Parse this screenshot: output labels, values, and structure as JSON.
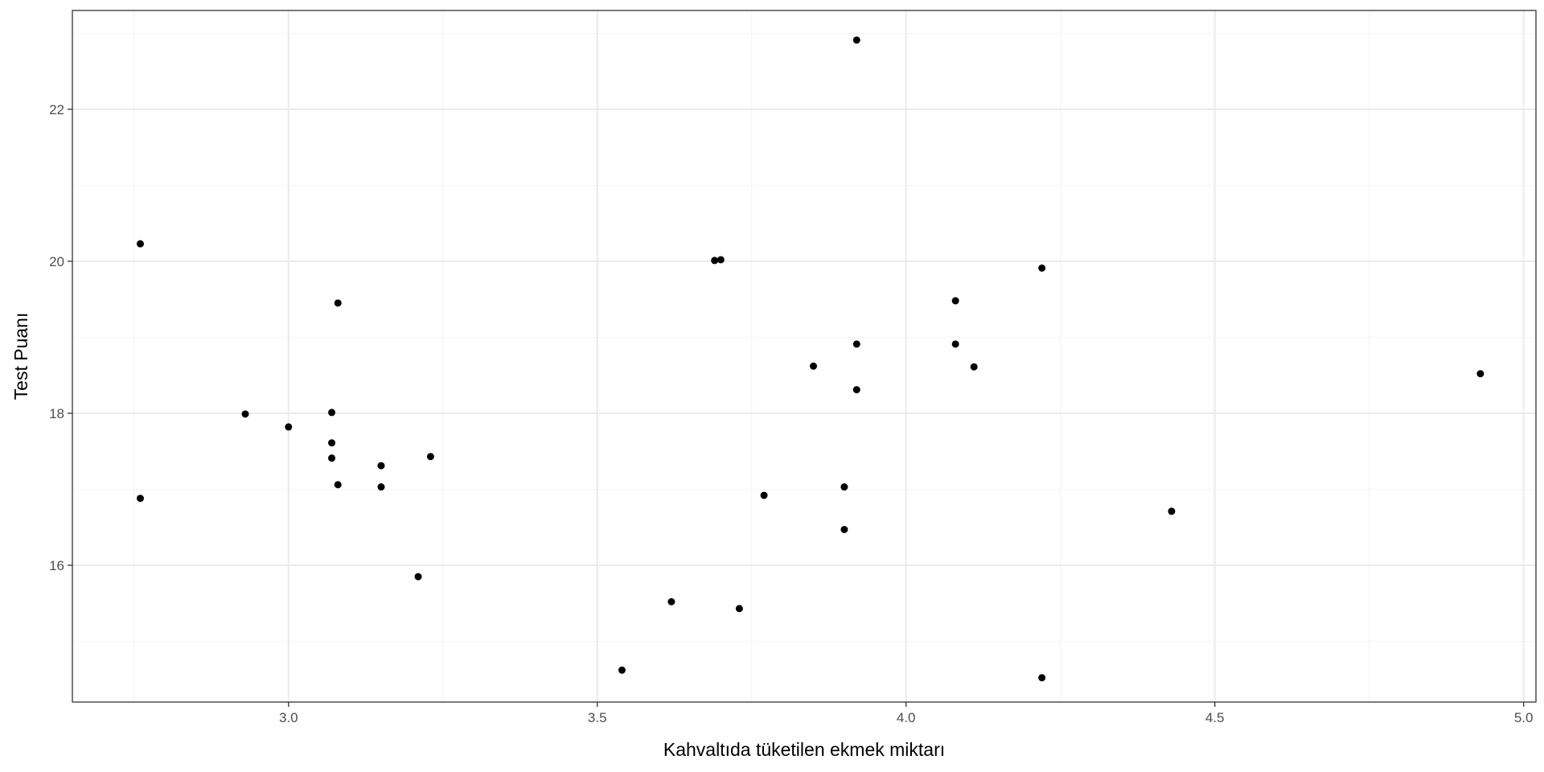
{
  "chart_data": {
    "type": "scatter",
    "title": "",
    "xlabel": "Kahvaltıda tüketilen ekmek miktarı",
    "ylabel": "Test Puanı",
    "xlim": [
      2.65,
      5.02
    ],
    "ylim": [
      14.2,
      23.3
    ],
    "xticks": [
      3.0,
      3.5,
      4.0,
      4.5,
      5.0
    ],
    "xtick_labels": [
      "3.0",
      "3.5",
      "4.0",
      "4.5",
      "5.0"
    ],
    "yticks": [
      16,
      18,
      20,
      22
    ],
    "ytick_labels": [
      "16",
      "18",
      "20",
      "22"
    ],
    "x_minor": [
      2.75,
      3.25,
      3.75,
      4.25,
      4.75
    ],
    "y_minor": [
      15,
      17,
      19,
      21,
      23
    ],
    "grid": true,
    "theme": "bw",
    "colors": {
      "point": "#000000",
      "grid_major": "#ebebeb",
      "grid_minor": "#f2f2f2",
      "panel_border": "#333333",
      "tick_text": "#4d4d4d"
    },
    "points": [
      {
        "x": 2.76,
        "y": 20.23
      },
      {
        "x": 2.76,
        "y": 16.88
      },
      {
        "x": 2.93,
        "y": 17.99
      },
      {
        "x": 3.0,
        "y": 17.82
      },
      {
        "x": 3.07,
        "y": 18.01
      },
      {
        "x": 3.07,
        "y": 17.61
      },
      {
        "x": 3.07,
        "y": 17.41
      },
      {
        "x": 3.08,
        "y": 19.45
      },
      {
        "x": 3.08,
        "y": 17.06
      },
      {
        "x": 3.15,
        "y": 17.31
      },
      {
        "x": 3.15,
        "y": 17.03
      },
      {
        "x": 3.21,
        "y": 15.85
      },
      {
        "x": 3.23,
        "y": 17.43
      },
      {
        "x": 3.54,
        "y": 14.62
      },
      {
        "x": 3.62,
        "y": 15.52
      },
      {
        "x": 3.69,
        "y": 20.01
      },
      {
        "x": 3.7,
        "y": 20.02
      },
      {
        "x": 3.73,
        "y": 15.43
      },
      {
        "x": 3.77,
        "y": 16.92
      },
      {
        "x": 3.85,
        "y": 18.62
      },
      {
        "x": 3.9,
        "y": 17.03
      },
      {
        "x": 3.9,
        "y": 16.47
      },
      {
        "x": 3.92,
        "y": 22.91
      },
      {
        "x": 3.92,
        "y": 18.91
      },
      {
        "x": 3.92,
        "y": 18.31
      },
      {
        "x": 4.08,
        "y": 19.48
      },
      {
        "x": 4.08,
        "y": 18.91
      },
      {
        "x": 4.11,
        "y": 18.61
      },
      {
        "x": 4.22,
        "y": 19.91
      },
      {
        "x": 4.22,
        "y": 14.52
      },
      {
        "x": 4.43,
        "y": 16.71
      },
      {
        "x": 4.93,
        "y": 18.52
      }
    ]
  }
}
